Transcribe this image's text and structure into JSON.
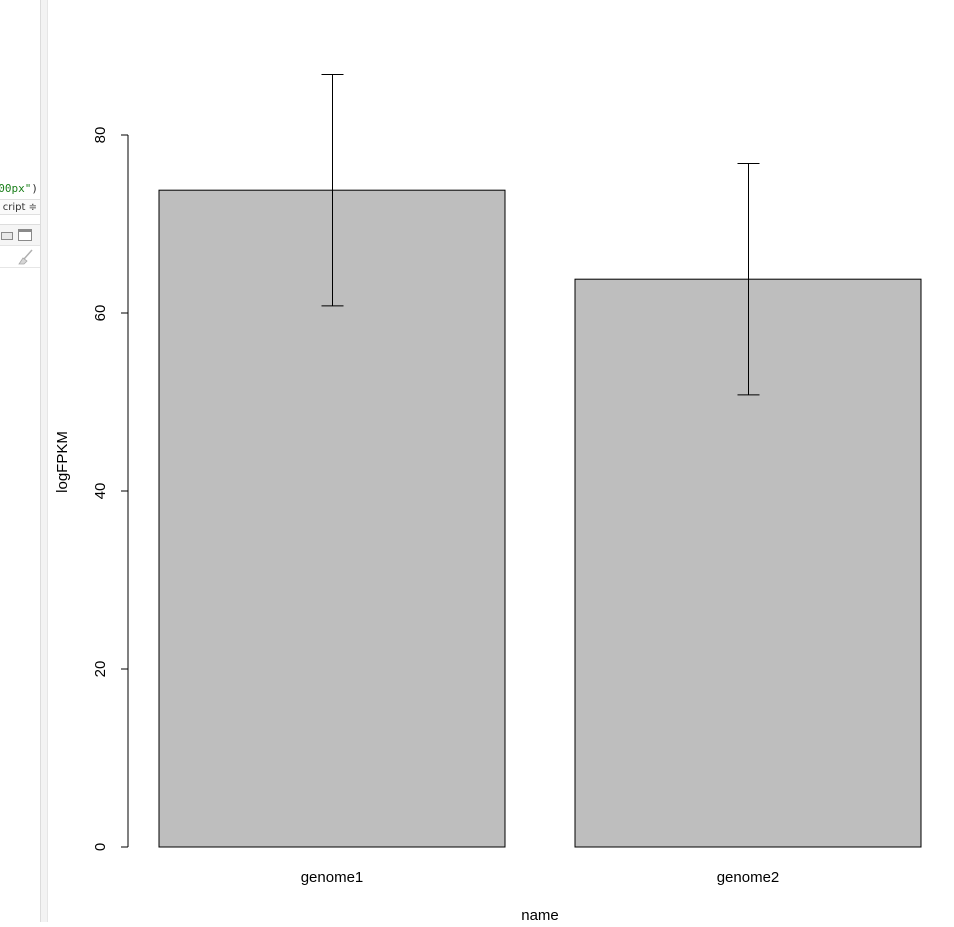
{
  "left_pane": {
    "code_snippet_text": "00px\"",
    "code_snippet_paren": ")",
    "language_select_value": "cript ≑"
  },
  "chart_data": {
    "type": "bar",
    "categories": [
      "genome1",
      "genome2"
    ],
    "values": [
      73.8,
      63.8
    ],
    "error_bars": [
      {
        "lower": 60.8,
        "upper": 86.8
      },
      {
        "lower": 50.8,
        "upper": 76.8
      }
    ],
    "xlabel": "name",
    "ylabel": "logFPKM",
    "ylim": [
      0,
      80
    ],
    "yticks": [
      0,
      20,
      40,
      60,
      80
    ],
    "bar_color": "#bebebe",
    "outline_color": "#000000",
    "grid": false,
    "legend": "none"
  }
}
